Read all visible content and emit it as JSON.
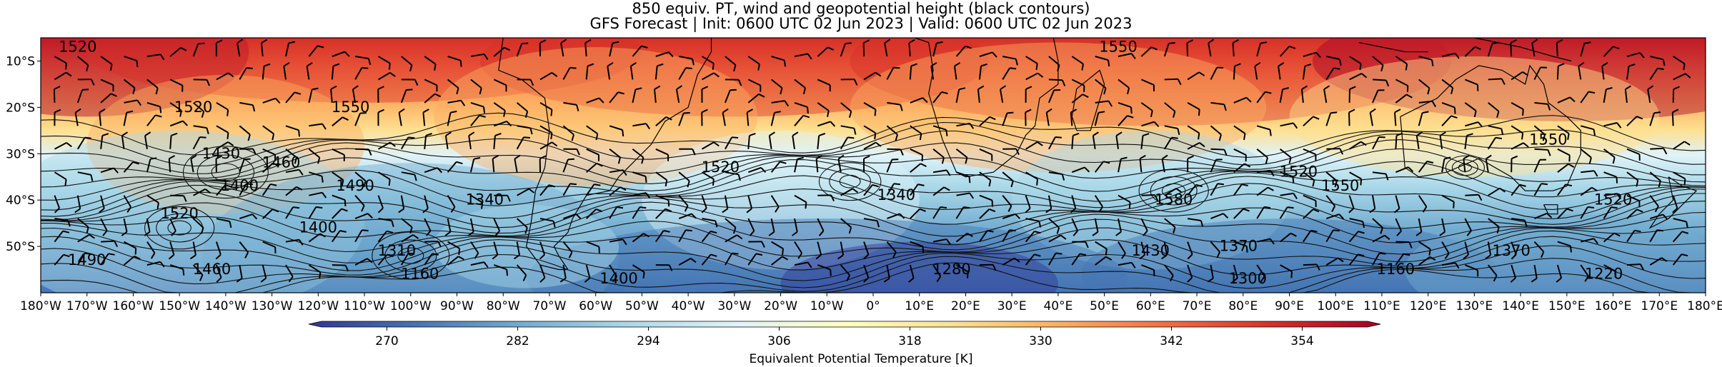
{
  "title": {
    "line1": "850 equiv. PT, wind and geopotential height (black contours)",
    "line2": "GFS Forecast | Init: 0600 UTC 02 Jun 2023 | Valid: 0600 UTC 02 Jun 2023"
  },
  "map": {
    "lon_range": [
      -180,
      180
    ],
    "lat_range": [
      -60,
      -5
    ],
    "lat_ticks": [
      {
        "lat": -10,
        "label": "10°S"
      },
      {
        "lat": -20,
        "label": "20°S"
      },
      {
        "lat": -30,
        "label": "30°S"
      },
      {
        "lat": -40,
        "label": "40°S"
      },
      {
        "lat": -50,
        "label": "50°S"
      }
    ],
    "lon_ticks": [
      {
        "lon": -180,
        "label": "180°W"
      },
      {
        "lon": -170,
        "label": "170°W"
      },
      {
        "lon": -160,
        "label": "160°W"
      },
      {
        "lon": -150,
        "label": "150°W"
      },
      {
        "lon": -140,
        "label": "140°W"
      },
      {
        "lon": -130,
        "label": "130°W"
      },
      {
        "lon": -120,
        "label": "120°W"
      },
      {
        "lon": -110,
        "label": "110°W"
      },
      {
        "lon": -100,
        "label": "100°W"
      },
      {
        "lon": -90,
        "label": "90°W"
      },
      {
        "lon": -80,
        "label": "80°W"
      },
      {
        "lon": -70,
        "label": "70°W"
      },
      {
        "lon": -60,
        "label": "60°W"
      },
      {
        "lon": -50,
        "label": "50°W"
      },
      {
        "lon": -40,
        "label": "40°W"
      },
      {
        "lon": -30,
        "label": "30°W"
      },
      {
        "lon": -20,
        "label": "20°W"
      },
      {
        "lon": -10,
        "label": "10°W"
      },
      {
        "lon": 0,
        "label": "0°"
      },
      {
        "lon": 10,
        "label": "10°E"
      },
      {
        "lon": 20,
        "label": "20°E"
      },
      {
        "lon": 30,
        "label": "30°E"
      },
      {
        "lon": 40,
        "label": "40°E"
      },
      {
        "lon": 50,
        "label": "50°E"
      },
      {
        "lon": 60,
        "label": "60°E"
      },
      {
        "lon": 70,
        "label": "70°E"
      },
      {
        "lon": 80,
        "label": "80°E"
      },
      {
        "lon": 90,
        "label": "90°E"
      },
      {
        "lon": 100,
        "label": "100°E"
      },
      {
        "lon": 110,
        "label": "110°E"
      },
      {
        "lon": 120,
        "label": "120°E"
      },
      {
        "lon": 130,
        "label": "130°E"
      },
      {
        "lon": 140,
        "label": "140°E"
      },
      {
        "lon": 150,
        "label": "150°E"
      },
      {
        "lon": 160,
        "label": "160°E"
      },
      {
        "lon": 170,
        "label": "170°E"
      },
      {
        "lon": 180,
        "label": "180°E"
      }
    ],
    "contour_labels": [
      {
        "text": "1520",
        "lon": -172,
        "lat": -8
      },
      {
        "text": "1520",
        "lon": -147,
        "lat": -21
      },
      {
        "text": "1550",
        "lon": -113,
        "lat": -21
      },
      {
        "text": "1430",
        "lon": -141,
        "lat": -31
      },
      {
        "text": "1460",
        "lon": -128,
        "lat": -33
      },
      {
        "text": "1400",
        "lon": -137,
        "lat": -38
      },
      {
        "text": "1490",
        "lon": -112,
        "lat": -38
      },
      {
        "text": "1340",
        "lon": -84,
        "lat": -41
      },
      {
        "text": "1520",
        "lon": -33,
        "lat": -34
      },
      {
        "text": "1520",
        "lon": -150,
        "lat": -44
      },
      {
        "text": "1490",
        "lon": -170,
        "lat": -54
      },
      {
        "text": "1460",
        "lon": -143,
        "lat": -56
      },
      {
        "text": "1400",
        "lon": -120,
        "lat": -47
      },
      {
        "text": "1310",
        "lon": -103,
        "lat": -52
      },
      {
        "text": "1160",
        "lon": -98,
        "lat": -57
      },
      {
        "text": "1400",
        "lon": -55,
        "lat": -58
      },
      {
        "text": "1340",
        "lon": 5,
        "lat": -40
      },
      {
        "text": "1280",
        "lon": 17,
        "lat": -56
      },
      {
        "text": "1550",
        "lon": 53,
        "lat": -8
      },
      {
        "text": "1580",
        "lon": 65,
        "lat": -41
      },
      {
        "text": "1430",
        "lon": 60,
        "lat": -52
      },
      {
        "text": "1370",
        "lon": 79,
        "lat": -51
      },
      {
        "text": "1300",
        "lon": 81,
        "lat": -58
      },
      {
        "text": "1520",
        "lon": 92,
        "lat": -35
      },
      {
        "text": "1550",
        "lon": 101,
        "lat": -38
      },
      {
        "text": "1160",
        "lon": 113,
        "lat": -56
      },
      {
        "text": "1550",
        "lon": 146,
        "lat": -28
      },
      {
        "text": "1520",
        "lon": 160,
        "lat": -41
      },
      {
        "text": "1370",
        "lon": 138,
        "lat": -52
      },
      {
        "text": "1220",
        "lon": 158,
        "lat": -57
      }
    ]
  },
  "colorbar": {
    "label": "Equivalent Potential Temperature [K]",
    "min": 264,
    "max": 360,
    "ticks": [
      270,
      282,
      294,
      306,
      318,
      330,
      342,
      354
    ],
    "colors": [
      "#313695",
      "#4575b4",
      "#74add1",
      "#abd9e9",
      "#e0f3f8",
      "#ffffbf",
      "#fee090",
      "#fdae61",
      "#f46d43",
      "#d73027",
      "#a50026"
    ]
  }
}
